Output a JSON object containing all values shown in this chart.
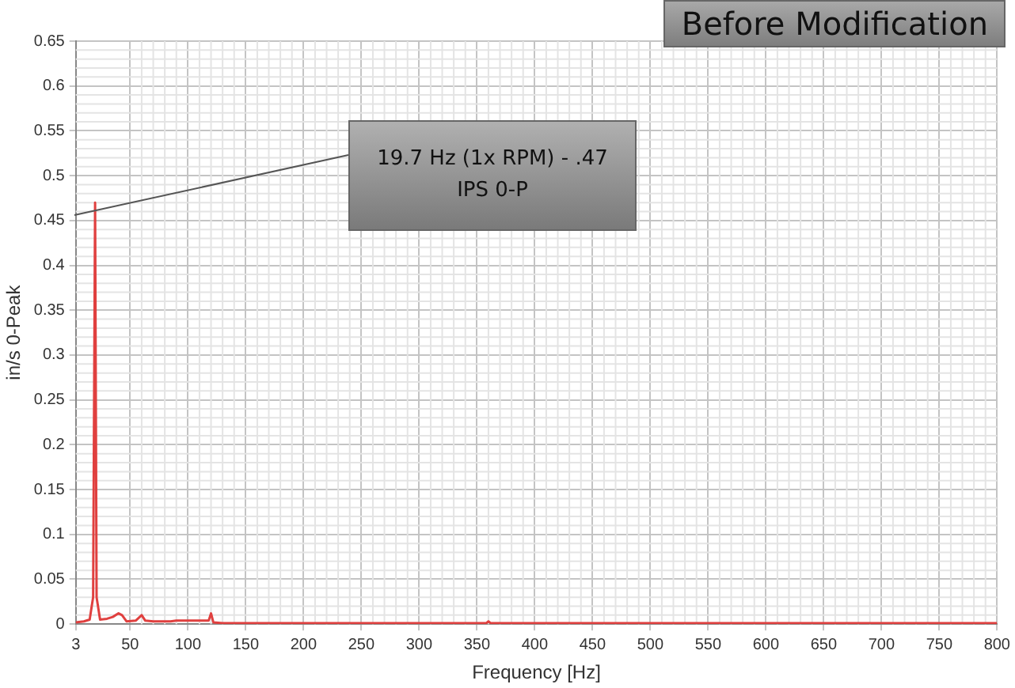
{
  "chart_data": {
    "type": "line",
    "title": "Before Modification",
    "xlabel": "Frequency [Hz]",
    "ylabel": "in/s 0-Peak",
    "xlim": [
      3,
      800
    ],
    "xticks": [
      3,
      50,
      100,
      150,
      200,
      250,
      300,
      350,
      400,
      450,
      500,
      550,
      600,
      650,
      700,
      750,
      800
    ],
    "ylim": [
      0,
      0.65
    ],
    "yticks": [
      0,
      0.05,
      0.1,
      0.15,
      0.2,
      0.25,
      0.3,
      0.35,
      0.4,
      0.45,
      0.5,
      0.55,
      0.6,
      0.65
    ],
    "grid": true,
    "legend": false,
    "marker": "none",
    "line_style": "solid",
    "annotations": [
      "19.7 Hz (1x RPM) - .47 IPS 0-P"
    ],
    "series": [
      {
        "color": "#e0403f",
        "x": [
          3,
          10,
          15,
          18,
          19.7,
          21,
          24,
          30,
          35,
          40,
          43,
          47,
          55,
          60,
          63,
          70,
          85,
          90,
          118,
          120,
          122,
          130,
          358,
          360,
          362,
          800
        ],
        "values": [
          0.002,
          0.003,
          0.005,
          0.03,
          0.47,
          0.03,
          0.005,
          0.006,
          0.008,
          0.012,
          0.01,
          0.003,
          0.004,
          0.01,
          0.004,
          0.003,
          0.003,
          0.004,
          0.004,
          0.012,
          0.002,
          0.001,
          0.001,
          0.003,
          0.001,
          0.001
        ]
      }
    ]
  }
}
